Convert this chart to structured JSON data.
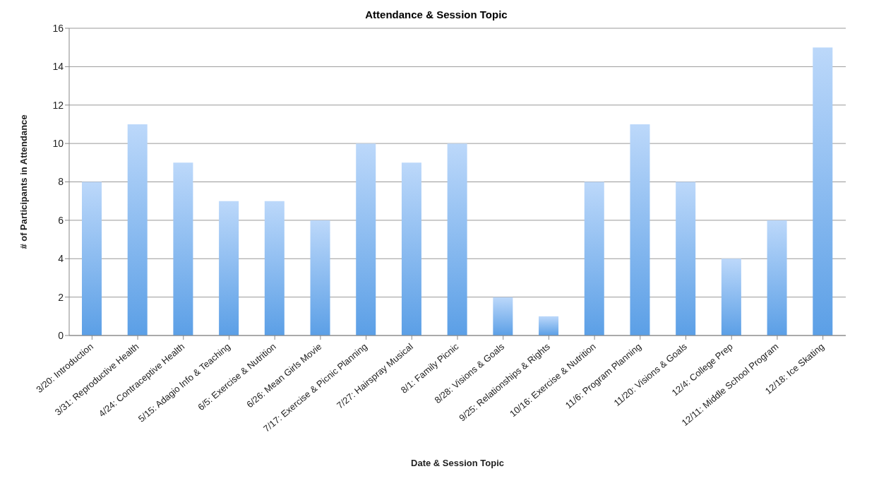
{
  "chart_data": {
    "type": "bar",
    "title": "Attendance & Session Topic",
    "xlabel": "Date & Session Topic",
    "ylabel": "# of Participants in Attendance",
    "categories": [
      "3/20: Introduction",
      "3/31: Reproductive Health",
      "4/24: Contraceptive Health",
      "5/15: Adagio Info & Teaching",
      "6/5: Exercise & Nutrition",
      "6/26: Mean Girls Movie",
      "7/17: Exercise & Picnic Planning",
      "7/27: Hairspray Musical",
      "8/1: Family Picnic",
      "8/28: Visions & Goals",
      "9/25: Relationships & Rights",
      "10/16: Exercise & Nutrition",
      "11/6: Program Planning",
      "11/20: Visions & Goals",
      "12/4: College Prep",
      "12/11: Middle School Program",
      "12/18: Ice Skating"
    ],
    "values": [
      8,
      11,
      9,
      7,
      7,
      6,
      10,
      9,
      10,
      2,
      1,
      8,
      11,
      8,
      4,
      6,
      15
    ],
    "color": "#5b9fe6",
    "ylim": [
      0,
      16
    ],
    "yticks": [
      0,
      2,
      4,
      6,
      8,
      10,
      12,
      14,
      16
    ],
    "grid": "y",
    "legend": false
  }
}
